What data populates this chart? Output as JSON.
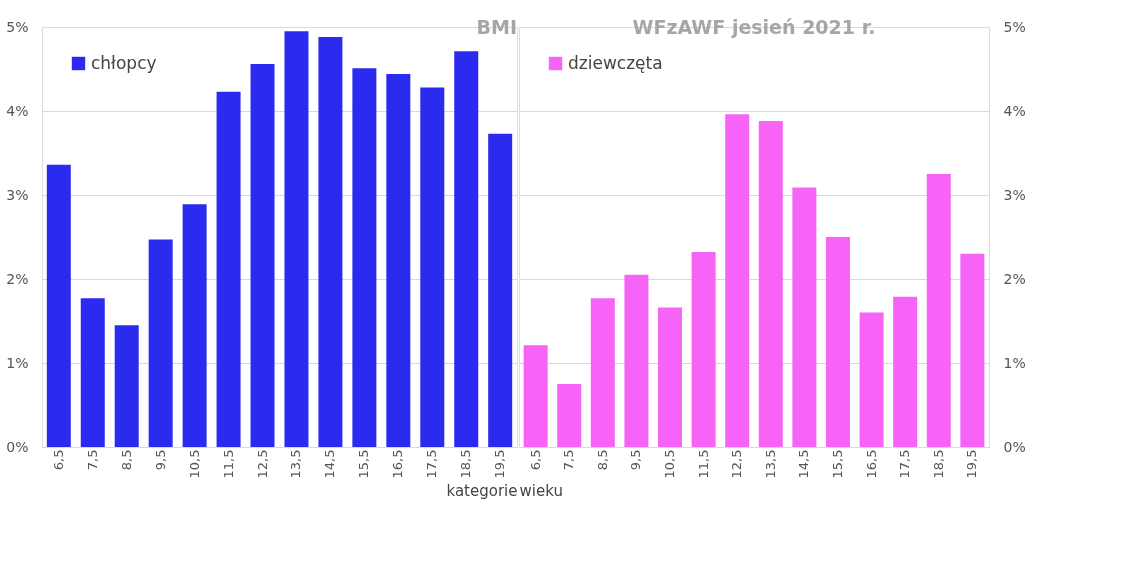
{
  "chart_data": [
    {
      "type": "bar",
      "title": "BMI",
      "xlabel": "kategorie",
      "categories": [
        "6,5",
        "7,5",
        "8,5",
        "9,5",
        "10,5",
        "11,5",
        "12,5",
        "13,5",
        "14,5",
        "15,5",
        "16,5",
        "17,5",
        "18,5",
        "19,5"
      ],
      "series": [
        {
          "name": "chłopcy",
          "color": "#2b2bf0",
          "values": [
            3.36,
            1.77,
            1.45,
            2.47,
            2.89,
            4.23,
            4.56,
            4.95,
            4.88,
            4.51,
            4.44,
            4.28,
            4.71,
            3.73
          ]
        }
      ],
      "ylim": [
        0,
        5
      ],
      "yticks": [
        {
          "value": 0,
          "label": "0%"
        },
        {
          "value": 1,
          "label": "1%"
        },
        {
          "value": 2,
          "label": "2%"
        },
        {
          "value": 3,
          "label": "3%"
        },
        {
          "value": 4,
          "label": "4%"
        },
        {
          "value": 5,
          "label": "5%"
        }
      ],
      "grid": "y",
      "legend": "top left"
    },
    {
      "type": "bar",
      "title": "WFzAWF jesień 2021 r.",
      "xlabel": "wieku",
      "categories": [
        "6,5",
        "7,5",
        "8,5",
        "9,5",
        "10,5",
        "11,5",
        "12,5",
        "13,5",
        "14,5",
        "15,5",
        "16,5",
        "17,5",
        "18,5",
        "19,5"
      ],
      "series": [
        {
          "name": "dziewczęta",
          "color": "#f763f7",
          "values": [
            1.21,
            0.75,
            1.77,
            2.05,
            1.66,
            2.32,
            3.96,
            3.88,
            3.09,
            2.5,
            1.6,
            1.79,
            3.25,
            2.3
          ]
        }
      ],
      "ylim": [
        0,
        5
      ],
      "yticks": [
        {
          "value": 0,
          "label": "0%"
        },
        {
          "value": 1,
          "label": "1%"
        },
        {
          "value": 2,
          "label": "2%"
        },
        {
          "value": 3,
          "label": "3%"
        },
        {
          "value": 4,
          "label": "4%"
        },
        {
          "value": 5,
          "label": "5%"
        }
      ],
      "grid": "y",
      "legend": "top left"
    }
  ]
}
